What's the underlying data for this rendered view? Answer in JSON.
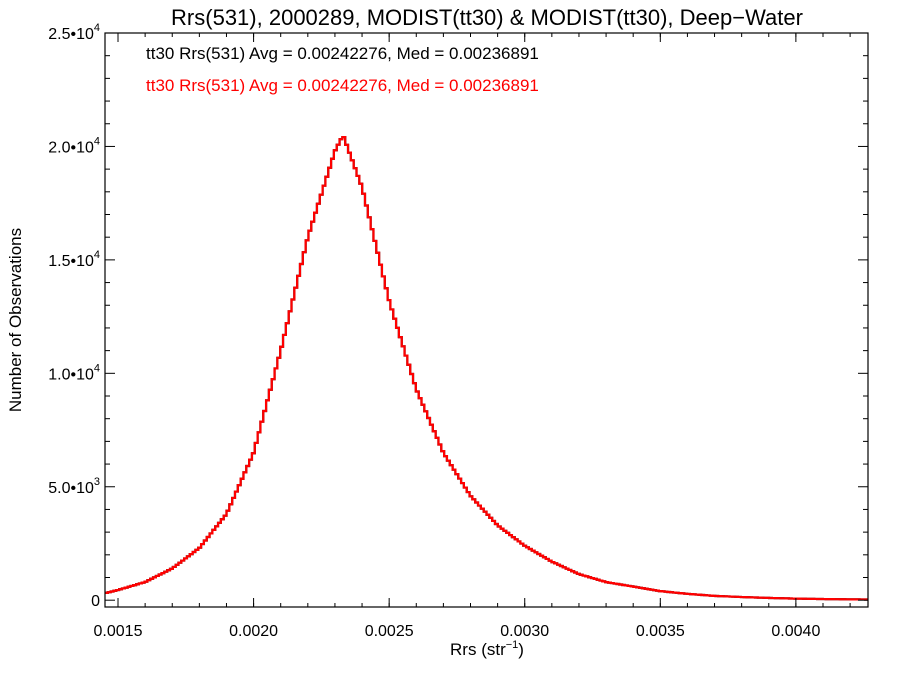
{
  "chart_data": {
    "type": "line",
    "style": "histogram-step",
    "title": "Rrs(531), 2000289, MODIST(tt30) & MODIST(tt30), Deep−Water",
    "xlabel": {
      "base": "Rrs (str",
      "sup": "−1",
      "suffix": ")"
    },
    "ylabel": "Number of Observations",
    "xlim": [
      0.001452,
      0.004266
    ],
    "ylim": [
      -300,
      25000
    ],
    "x_ticks": [
      {
        "value": 0.0015,
        "label": "0.0015"
      },
      {
        "value": 0.002,
        "label": "0.0020"
      },
      {
        "value": 0.0025,
        "label": "0.0025"
      },
      {
        "value": 0.003,
        "label": "0.0030"
      },
      {
        "value": 0.0035,
        "label": "0.0035"
      },
      {
        "value": 0.004,
        "label": "0.0040"
      }
    ],
    "y_ticks": [
      {
        "value": 0,
        "mant": "0",
        "exp": ""
      },
      {
        "value": 5000,
        "mant": "5.0•10",
        "exp": "3"
      },
      {
        "value": 10000,
        "mant": "1.0•10",
        "exp": "4"
      },
      {
        "value": 15000,
        "mant": "1.5•10",
        "exp": "4"
      },
      {
        "value": 20000,
        "mant": "2.0•10",
        "exp": "4"
      },
      {
        "value": 25000,
        "mant": "2.5•10",
        "exp": "4"
      }
    ],
    "legend": [
      {
        "text": "tt30 Rrs(531) Avg = 0.00242276, Med = 0.00236891",
        "color": "#000000"
      },
      {
        "text": "tt30 Rrs(531) Avg = 0.00242276, Med = 0.00236891",
        "color": "#ff0000"
      }
    ],
    "series": [
      {
        "name": "tt30 Rrs(531)",
        "color": "#000000",
        "x": [
          0.00145,
          0.0015,
          0.0016,
          0.0017,
          0.0018,
          0.0019,
          0.002,
          0.0021,
          0.0022,
          0.0023,
          0.00233,
          0.0024,
          0.0025,
          0.0026,
          0.0027,
          0.0028,
          0.0029,
          0.003,
          0.0031,
          0.0032,
          0.0033,
          0.0034,
          0.0035,
          0.0036,
          0.0037,
          0.0038,
          0.0039,
          0.004,
          0.0041,
          0.00427
        ],
        "y": [
          300,
          450,
          800,
          1400,
          2300,
          3800,
          6500,
          11000,
          16000,
          19800,
          20500,
          18200,
          13200,
          9300,
          6500,
          4600,
          3300,
          2400,
          1700,
          1150,
          800,
          600,
          400,
          280,
          190,
          140,
          100,
          70,
          50,
          30
        ]
      },
      {
        "name": "tt30 Rrs(531)",
        "color": "#ff0000",
        "x": [
          0.00145,
          0.0015,
          0.0016,
          0.0017,
          0.0018,
          0.0019,
          0.002,
          0.0021,
          0.0022,
          0.0023,
          0.00233,
          0.0024,
          0.0025,
          0.0026,
          0.0027,
          0.0028,
          0.0029,
          0.003,
          0.0031,
          0.0032,
          0.0033,
          0.0034,
          0.0035,
          0.0036,
          0.0037,
          0.0038,
          0.0039,
          0.004,
          0.0041,
          0.00427
        ],
        "y": [
          300,
          450,
          800,
          1400,
          2300,
          3800,
          6500,
          11000,
          16000,
          19800,
          20500,
          18200,
          13200,
          9300,
          6500,
          4600,
          3300,
          2400,
          1700,
          1150,
          800,
          600,
          400,
          280,
          190,
          140,
          100,
          70,
          50,
          30
        ]
      }
    ]
  }
}
